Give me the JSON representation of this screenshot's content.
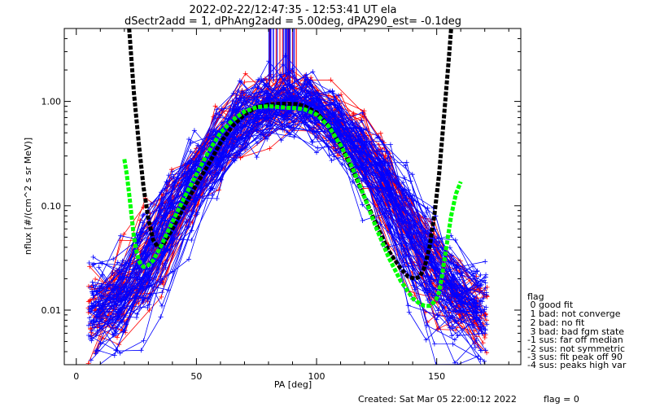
{
  "chart_data": {
    "type": "scatter",
    "title": "2022-02-22/12:47:35 - 12:53:41 UT ela",
    "subtitle": "dSectr2add = 1, dPhAng2add = 5.00deg, dPA290_est=  -0.1deg",
    "xlabel": "PA [deg]",
    "ylabel": "nflux [#/(cm^2 s sr MeV)]",
    "xlim": [
      -5,
      185
    ],
    "ylim": [
      0.003,
      5
    ],
    "yscale": "log",
    "x_ticks": [
      0,
      50,
      100,
      150
    ],
    "y_ticks": [
      {
        "v": 0.01,
        "label": "0.01"
      },
      {
        "v": 0.1,
        "label": "0.10"
      },
      {
        "v": 1,
        "label": "1.00"
      }
    ],
    "series": [
      {
        "color": "#ff0000",
        "style": "thin lines with plus markers",
        "curves": 45,
        "x": [
          8,
          18,
          28,
          38,
          48,
          58,
          68,
          78,
          88,
          98,
          108,
          118,
          128,
          138,
          148,
          158,
          168
        ]
      },
      {
        "color": "#0000ff",
        "style": "thin lines with plus markers",
        "curves": 80,
        "x": [
          8,
          18,
          28,
          38,
          48,
          58,
          68,
          78,
          88,
          98,
          108,
          118,
          128,
          138,
          148,
          158,
          168
        ]
      },
      {
        "color": "#000000",
        "style": "thick dashed fit",
        "x": [
          22,
          24,
          26,
          28,
          30,
          32,
          34,
          36,
          40,
          45,
          50,
          55,
          60,
          65,
          70,
          75,
          80,
          85,
          88,
          92,
          95,
          100,
          105,
          110,
          115,
          120,
          125,
          130,
          135,
          138,
          141,
          143,
          145,
          147,
          149,
          151,
          153,
          155,
          156
        ],
        "y": [
          5.0,
          1.2,
          0.4,
          0.15,
          0.075,
          0.047,
          0.04,
          0.042,
          0.06,
          0.1,
          0.16,
          0.25,
          0.4,
          0.58,
          0.75,
          0.88,
          0.93,
          0.95,
          0.95,
          0.94,
          0.9,
          0.78,
          0.58,
          0.38,
          0.22,
          0.12,
          0.065,
          0.037,
          0.025,
          0.021,
          0.02,
          0.021,
          0.026,
          0.04,
          0.08,
          0.2,
          0.7,
          2.5,
          5.0
        ]
      },
      {
        "color": "#00ff00",
        "style": "thick dashed fit",
        "x": [
          20,
          21,
          22,
          23,
          24,
          25,
          26,
          27,
          28,
          30,
          32,
          35,
          40,
          45,
          50,
          55,
          60,
          65,
          70,
          75,
          80,
          85,
          88,
          92,
          95,
          100,
          105,
          110,
          115,
          120,
          125,
          130,
          135,
          140,
          143,
          145,
          147,
          149,
          150,
          151,
          152,
          154,
          156,
          158,
          160
        ],
        "y": [
          0.28,
          0.2,
          0.13,
          0.08,
          0.05,
          0.037,
          0.03,
          0.027,
          0.026,
          0.027,
          0.03,
          0.04,
          0.07,
          0.12,
          0.2,
          0.33,
          0.5,
          0.66,
          0.8,
          0.88,
          0.9,
          0.88,
          0.87,
          0.86,
          0.84,
          0.75,
          0.58,
          0.38,
          0.23,
          0.12,
          0.06,
          0.032,
          0.019,
          0.013,
          0.0115,
          0.011,
          0.011,
          0.012,
          0.013,
          0.015,
          0.02,
          0.04,
          0.08,
          0.13,
          0.17
        ]
      }
    ]
  },
  "legend": {
    "title": "flag",
    "items": [
      " 0 good fit",
      " 1 bad: not converge",
      " 2 bad: no fit",
      " 3 bad: bad fgm state",
      "-1 sus: far off median",
      "-2 sus: not symmetric",
      "-3 sus: fit peak off 90",
      "-4 sus: peaks high var"
    ]
  },
  "footer": {
    "created": "Created: Sat Mar 05 22:00:12 2022",
    "flag": "flag = 0"
  }
}
